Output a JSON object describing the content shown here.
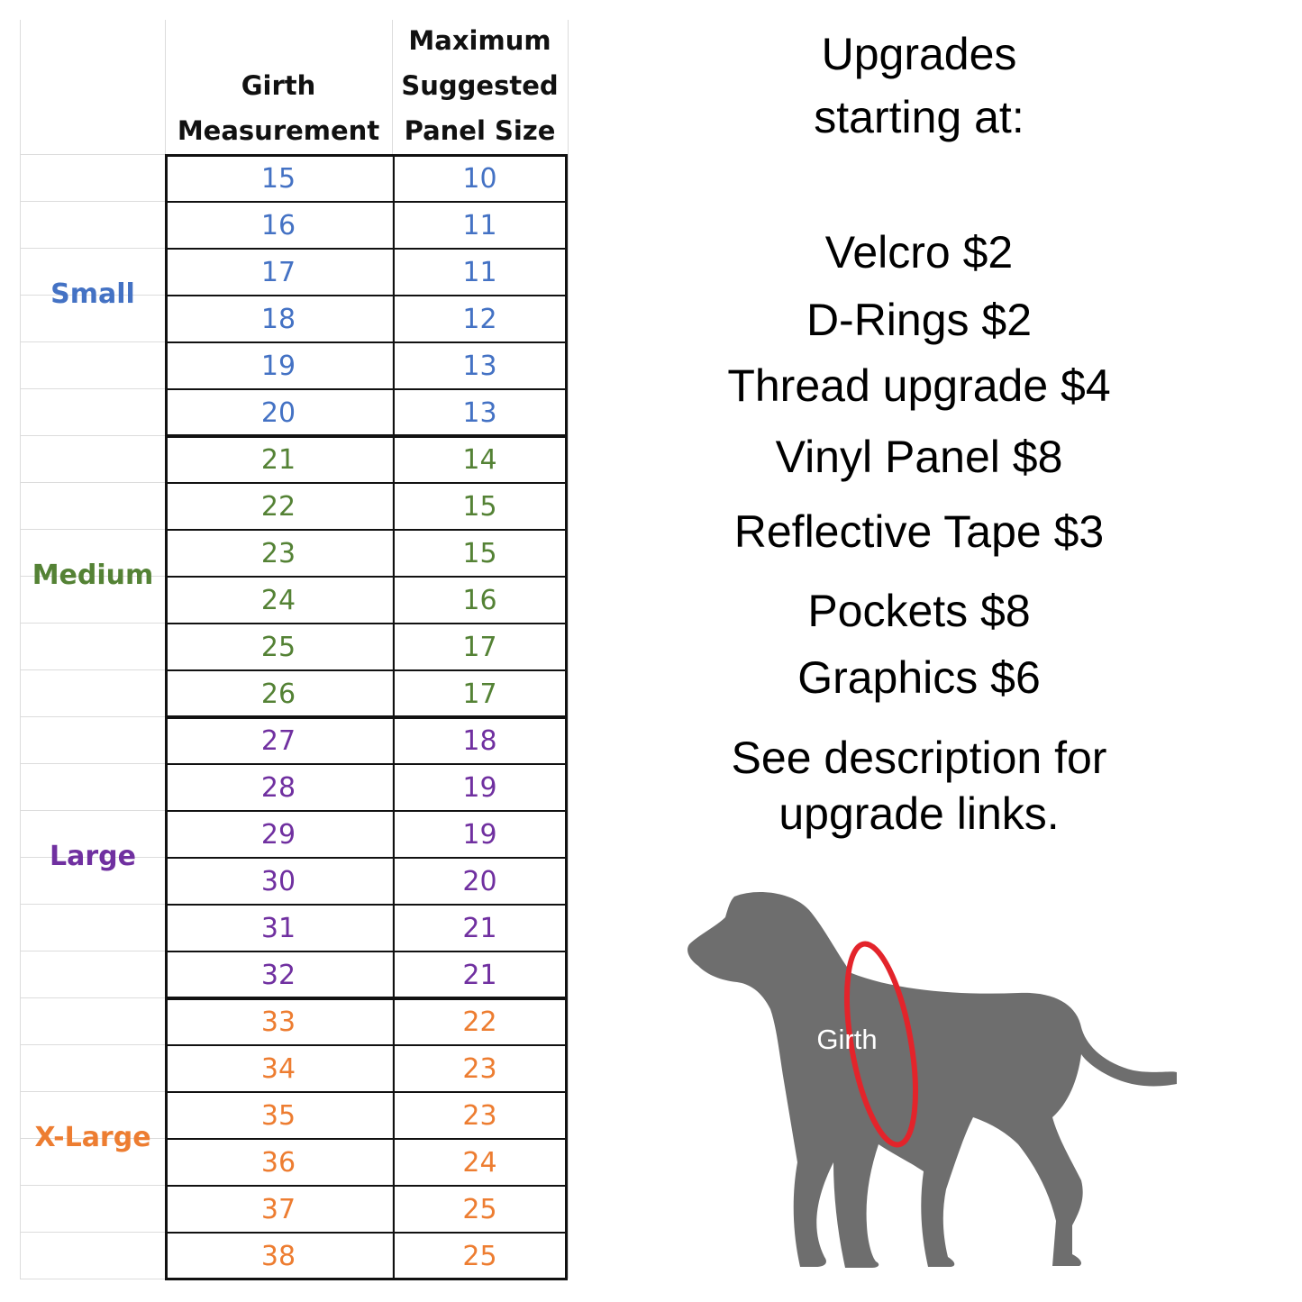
{
  "table": {
    "header_girth": [
      "Girth",
      "Measurement"
    ],
    "header_panel": [
      "Maximum",
      "Suggested",
      "Panel Size"
    ],
    "groups": [
      {
        "label": "Small",
        "color": "#4472c4",
        "rows": [
          [
            "15",
            "10"
          ],
          [
            "16",
            "11"
          ],
          [
            "17",
            "11"
          ],
          [
            "18",
            "12"
          ],
          [
            "19",
            "13"
          ],
          [
            "20",
            "13"
          ]
        ]
      },
      {
        "label": "Medium",
        "color": "#548235",
        "rows": [
          [
            "21",
            "14"
          ],
          [
            "22",
            "15"
          ],
          [
            "23",
            "15"
          ],
          [
            "24",
            "16"
          ],
          [
            "25",
            "17"
          ],
          [
            "26",
            "17"
          ]
        ]
      },
      {
        "label": "Large",
        "color": "#7030a0",
        "rows": [
          [
            "27",
            "18"
          ],
          [
            "28",
            "19"
          ],
          [
            "29",
            "19"
          ],
          [
            "30",
            "20"
          ],
          [
            "31",
            "21"
          ],
          [
            "32",
            "21"
          ]
        ]
      },
      {
        "label": "X-Large",
        "color": "#ed7d31",
        "rows": [
          [
            "33",
            "22"
          ],
          [
            "34",
            "23"
          ],
          [
            "35",
            "23"
          ],
          [
            "36",
            "24"
          ],
          [
            "37",
            "25"
          ],
          [
            "38",
            "25"
          ]
        ]
      }
    ]
  },
  "upgrades": {
    "heading": [
      "Upgrades",
      "starting at:"
    ],
    "items": [
      "Velcro $2",
      "D-Rings $2",
      "Thread upgrade $4",
      "Vinyl Panel $8",
      "Reflective Tape $3",
      "Pockets $8",
      "Graphics $6"
    ],
    "note": [
      "See description for",
      "upgrade links."
    ]
  },
  "figure": {
    "girth_label": "Girth",
    "dog_color": "#6e6e6e",
    "girth_ring_color": "#e3242b"
  }
}
